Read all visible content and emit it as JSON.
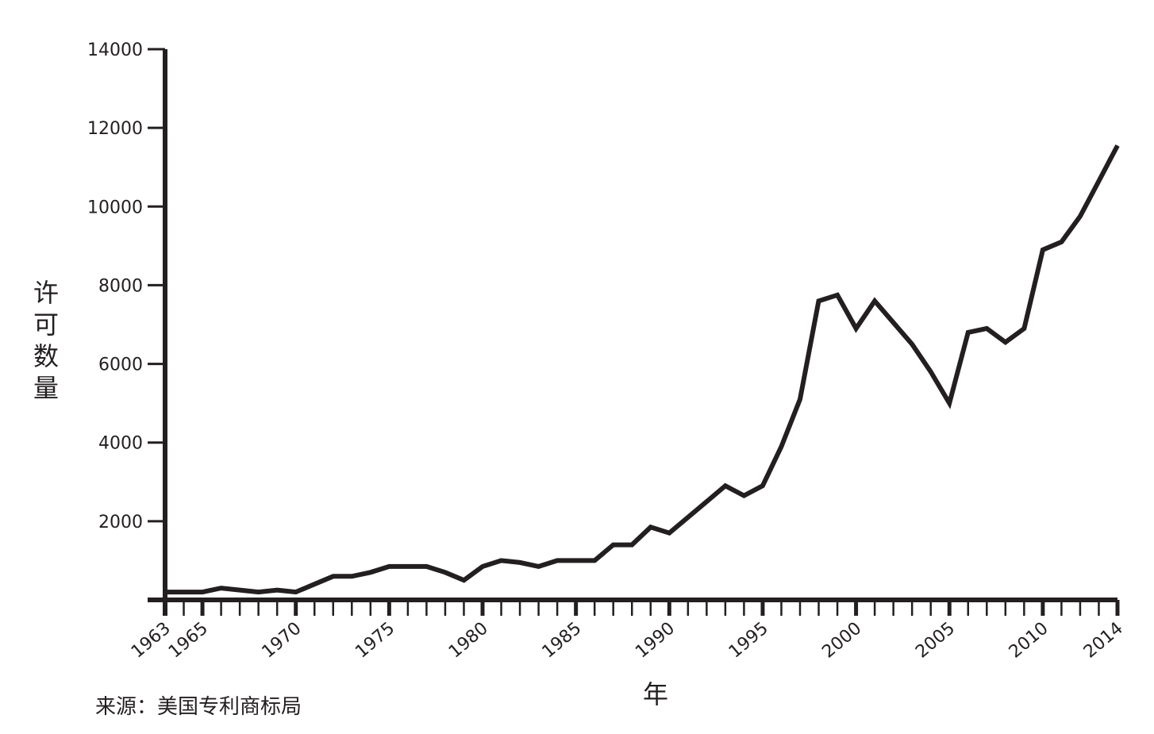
{
  "chart_data": {
    "type": "line",
    "title": "",
    "xlabel": "年",
    "ylabel": "许可数量",
    "source": "来源：美国专利商标局",
    "xlim": [
      1963,
      2014
    ],
    "ylim": [
      0,
      14000
    ],
    "x_tick_labels": [
      "1963",
      "1965",
      "1970",
      "1975",
      "1980",
      "1985",
      "1990",
      "1995",
      "2000",
      "2005",
      "2010",
      "2014"
    ],
    "y_tick_labels": [
      "2000",
      "4000",
      "6000",
      "8000",
      "10000",
      "12000",
      "14000"
    ],
    "y_ticks": [
      2000,
      4000,
      6000,
      8000,
      10000,
      12000,
      14000
    ],
    "grid": false,
    "legend": "none",
    "line_color": "#231f20",
    "series": [
      {
        "x": [
          1963,
          1964,
          1965,
          1966,
          1967,
          1968,
          1969,
          1970,
          1971,
          1972,
          1973,
          1974,
          1975,
          1976,
          1977,
          1978,
          1979,
          1980,
          1981,
          1982,
          1983,
          1984,
          1985,
          1986,
          1987,
          1988,
          1989,
          1990,
          1991,
          1992,
          1993,
          1994,
          1995,
          1996,
          1997,
          1998,
          1999,
          2000,
          2001,
          2002,
          2003,
          2004,
          2005,
          2006,
          2007,
          2008,
          2009,
          2010,
          2011,
          2012,
          2013,
          2014
        ],
        "values": [
          200,
          200,
          200,
          300,
          250,
          200,
          250,
          200,
          400,
          600,
          600,
          700,
          850,
          850,
          850,
          700,
          500,
          850,
          1000,
          950,
          850,
          1000,
          1000,
          1000,
          1400,
          1400,
          1850,
          1700,
          2100,
          2500,
          2900,
          2650,
          2900,
          3900,
          5100,
          7600,
          7750,
          6900,
          7600,
          7050,
          6500,
          5800,
          5000,
          6800,
          6900,
          6550,
          6900,
          8900,
          9100,
          9750,
          10650,
          11550
        ]
      }
    ]
  }
}
